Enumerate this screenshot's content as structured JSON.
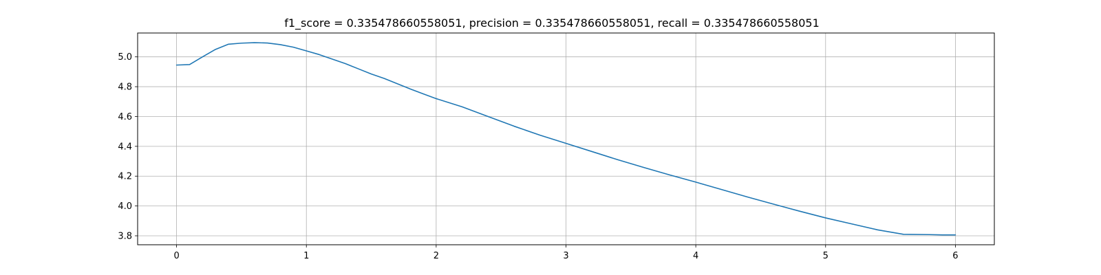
{
  "chart_data": {
    "type": "line",
    "title": "f1_score = 0.335478660558051, precision = 0.335478660558051, recall = 0.335478660558051",
    "xlabel": "",
    "ylabel": "",
    "xlim": [
      -0.3,
      6.3
    ],
    "ylim": [
      3.74,
      5.16
    ],
    "x_ticks": [
      0,
      1,
      2,
      3,
      4,
      5,
      6
    ],
    "x_tick_labels": [
      "0",
      "1",
      "2",
      "3",
      "4",
      "5",
      "6"
    ],
    "y_ticks": [
      3.8,
      4.0,
      4.2,
      4.4,
      4.6,
      4.8,
      5.0
    ],
    "y_tick_labels": [
      "3.8",
      "4.0",
      "4.2",
      "4.4",
      "4.6",
      "4.8",
      "5.0"
    ],
    "grid": true,
    "series": [
      {
        "color": "#1f77b4",
        "x": [
          0,
          0.1,
          0.2,
          0.3,
          0.4,
          0.5,
          0.6,
          0.7,
          0.8,
          0.9,
          1.0,
          1.1,
          1.2,
          1.3,
          1.4,
          1.5,
          1.6,
          1.7,
          1.8,
          1.9,
          2.0,
          2.2,
          2.4,
          2.6,
          2.8,
          3.0,
          3.2,
          3.4,
          3.6,
          3.8,
          4.0,
          4.2,
          4.4,
          4.6,
          4.8,
          5.0,
          5.2,
          5.4,
          5.6,
          5.8,
          5.9,
          6.0
        ],
        "y": [
          4.945,
          4.948,
          5.0,
          5.05,
          5.085,
          5.092,
          5.095,
          5.093,
          5.082,
          5.065,
          5.04,
          5.015,
          4.985,
          4.955,
          4.92,
          4.885,
          4.855,
          4.82,
          4.785,
          4.752,
          4.72,
          4.665,
          4.6,
          4.535,
          4.475,
          4.42,
          4.365,
          4.31,
          4.258,
          4.208,
          4.16,
          4.11,
          4.06,
          4.012,
          3.965,
          3.92,
          3.88,
          3.84,
          3.81,
          3.808,
          3.806,
          3.806
        ]
      }
    ]
  }
}
